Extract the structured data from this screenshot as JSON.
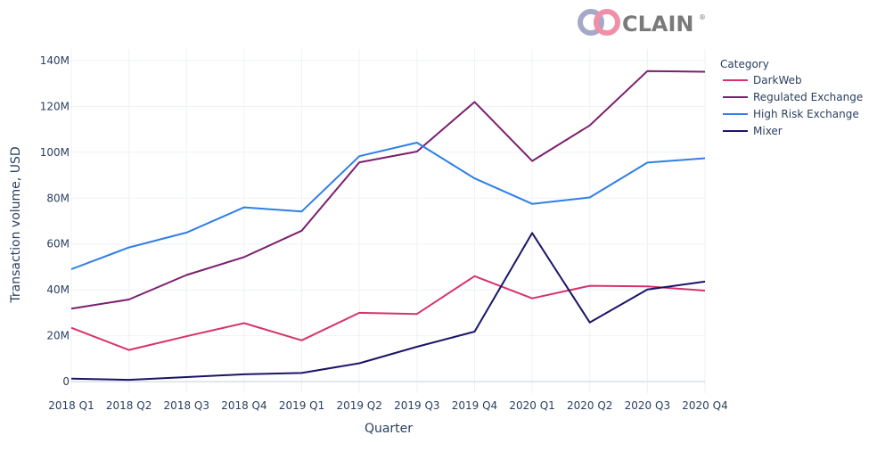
{
  "brand": {
    "name": "CLAIN",
    "mark": "®"
  },
  "chart_data": {
    "type": "line",
    "xlabel": "Quarter",
    "ylabel": "Transaction volume, USD",
    "categories": [
      "2018 Q1",
      "2018 Q2",
      "2018 Q3",
      "2018 Q4",
      "2019 Q1",
      "2019 Q2",
      "2019 Q3",
      "2019 Q4",
      "2020 Q1",
      "2020 Q2",
      "2020 Q3",
      "2020 Q4"
    ],
    "ylim": [
      -5000000,
      145000000
    ],
    "yticks": [
      0,
      20000000,
      40000000,
      60000000,
      80000000,
      100000000,
      120000000,
      140000000
    ],
    "ytick_labels": [
      "0",
      "20M",
      "40M",
      "60M",
      "80M",
      "100M",
      "120M",
      "140M"
    ],
    "grid": true,
    "legend": {
      "title": "Category",
      "placement": "right"
    },
    "series": [
      {
        "name": "DarkWeb",
        "color": "#d6336c",
        "values": [
          23500000,
          13800000,
          19800000,
          25500000,
          18000000,
          30000000,
          29500000,
          46000000,
          36300000,
          41800000,
          41500000,
          39700000
        ]
      },
      {
        "name": "Regulated Exchange",
        "color": "#7b1f6e",
        "values": [
          31800000,
          35800000,
          46500000,
          54300000,
          65800000,
          95600000,
          100300000,
          121900000,
          96200000,
          111700000,
          135400000,
          135100000
        ]
      },
      {
        "name": "High Risk Exchange",
        "color": "#2f7fe6",
        "values": [
          49000000,
          58500000,
          65000000,
          76000000,
          74200000,
          98300000,
          104200000,
          88600000,
          77500000,
          80300000,
          95500000,
          97400000
        ]
      },
      {
        "name": "Mixer",
        "color": "#1a1467",
        "values": [
          1300000,
          800000,
          2000000,
          3200000,
          3800000,
          8000000,
          15200000,
          21800000,
          64800000,
          25800000,
          40200000,
          43600000
        ]
      }
    ]
  }
}
